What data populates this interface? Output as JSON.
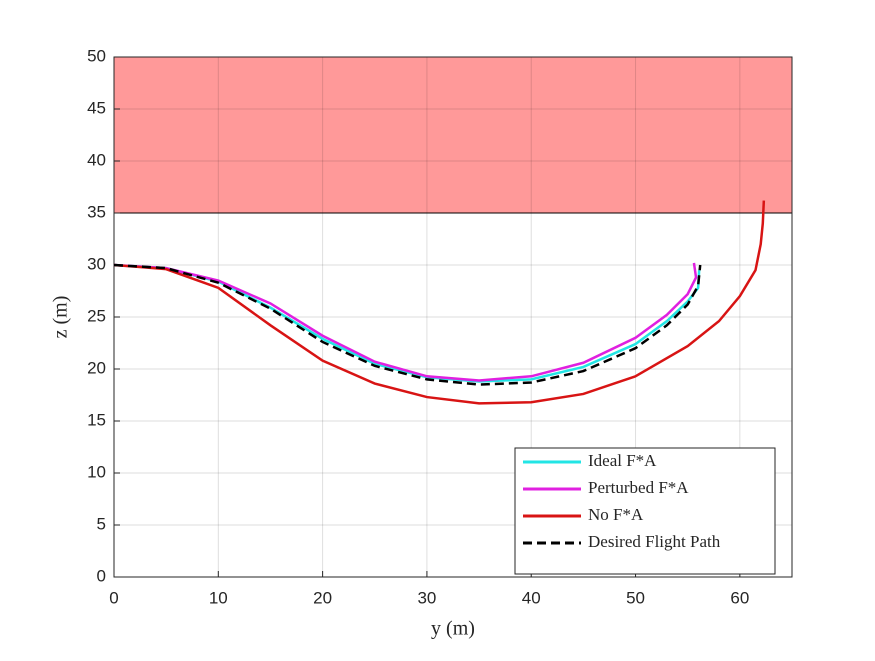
{
  "chart_data": {
    "type": "line",
    "xlabel": "y (m)",
    "ylabel": "z (m)",
    "xlim": [
      0,
      65
    ],
    "ylim": [
      0,
      50
    ],
    "xticks": [
      0,
      10,
      20,
      30,
      40,
      50,
      60
    ],
    "yticks": [
      0,
      5,
      10,
      15,
      20,
      25,
      30,
      35,
      40,
      45,
      50
    ],
    "grid": true,
    "legend": "lower right",
    "region": {
      "ylim": [
        35,
        50
      ],
      "color": "#ff9999"
    },
    "series": [
      {
        "name": "Ideal F*A",
        "color": "#22e5e5",
        "dash": false,
        "x": [
          0,
          5,
          10,
          15,
          20,
          25,
          30,
          35,
          40,
          45,
          50,
          53,
          55,
          56,
          56.1
        ],
        "values": [
          30,
          29.7,
          28.4,
          25.9,
          22.9,
          20.5,
          19.2,
          18.8,
          19,
          20.2,
          22.4,
          24.6,
          26.5,
          27.8,
          29.5
        ]
      },
      {
        "name": "Perturbed F*A",
        "color": "#e020e0",
        "dash": false,
        "x": [
          0,
          5,
          10,
          15,
          20,
          25,
          30,
          35,
          40,
          45,
          50,
          53,
          55,
          55.8,
          55.6
        ],
        "values": [
          30,
          29.7,
          28.5,
          26.3,
          23.2,
          20.7,
          19.3,
          18.9,
          19.3,
          20.6,
          23,
          25.2,
          27.2,
          28.8,
          30.2
        ]
      },
      {
        "name": "No F*A",
        "color": "#d81414",
        "dash": false,
        "x": [
          0,
          5,
          10,
          15,
          20,
          25,
          30,
          35,
          40,
          45,
          50,
          55,
          58,
          60,
          61.5,
          62,
          62.2,
          62.3
        ],
        "values": [
          30,
          29.6,
          27.8,
          24.2,
          20.8,
          18.6,
          17.3,
          16.7,
          16.8,
          17.6,
          19.3,
          22.2,
          24.6,
          27,
          29.5,
          32,
          34,
          36.2
        ]
      },
      {
        "name": "Desired Flight Path",
        "color": "#000000",
        "dash": true,
        "x": [
          0,
          5,
          10,
          15,
          20,
          25,
          30,
          35,
          40,
          45,
          50,
          53,
          55,
          56,
          56.2
        ],
        "values": [
          30,
          29.7,
          28.3,
          25.8,
          22.6,
          20.3,
          19,
          18.5,
          18.7,
          19.8,
          22,
          24.2,
          26.2,
          28,
          30
        ]
      }
    ]
  }
}
